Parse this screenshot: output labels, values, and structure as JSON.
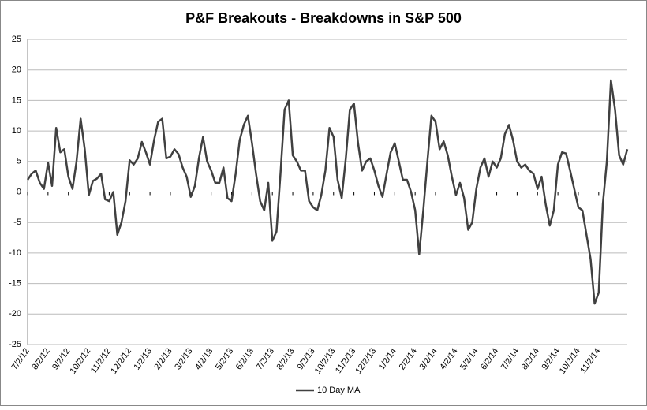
{
  "chart_data": {
    "type": "line",
    "title": "P&F Breakouts - Breakdowns in S&P 500",
    "categories": [
      "7/2/12",
      null,
      null,
      null,
      null,
      "8/2/12",
      null,
      null,
      null,
      null,
      "9/2/12",
      null,
      null,
      null,
      null,
      "10/2/12",
      null,
      null,
      null,
      null,
      "11/2/12",
      null,
      null,
      null,
      null,
      "12/2/12",
      null,
      null,
      null,
      null,
      "1/2/13",
      null,
      null,
      null,
      null,
      "2/2/13",
      null,
      null,
      null,
      null,
      "3/2/13",
      null,
      null,
      null,
      null,
      "4/2/13",
      null,
      null,
      null,
      null,
      "5/2/13",
      null,
      null,
      null,
      null,
      "6/2/13",
      null,
      null,
      null,
      null,
      "7/2/13",
      null,
      null,
      null,
      null,
      "8/2/13",
      null,
      null,
      null,
      null,
      "9/2/13",
      null,
      null,
      null,
      null,
      "10/2/13",
      null,
      null,
      null,
      null,
      "11/2/13",
      null,
      null,
      null,
      null,
      "12/2/13",
      null,
      null,
      null,
      null,
      "1/2/14",
      null,
      null,
      null,
      null,
      "2/2/14",
      null,
      null,
      null,
      null,
      "3/2/14",
      null,
      null,
      null,
      null,
      "4/2/14",
      null,
      null,
      null,
      null,
      "5/2/14",
      null,
      null,
      null,
      null,
      "6/2/14",
      null,
      null,
      null,
      null,
      "7/2/14",
      null,
      null,
      null,
      null,
      "8/2/14",
      null,
      null,
      null,
      null,
      "9/2/14",
      null,
      null,
      null,
      null,
      "10/2/14",
      null,
      null,
      null,
      null,
      "11/2/14",
      null,
      null,
      null,
      null,
      null,
      null,
      null
    ],
    "series": [
      {
        "name": "10 Day MA",
        "color": "#404040",
        "values": [
          2,
          3,
          3.5,
          1.5,
          0.5,
          4.8,
          1,
          10.5,
          6.5,
          7,
          2.5,
          0.5,
          5,
          12,
          7,
          -0.5,
          1.8,
          2.2,
          3,
          -1.2,
          -1.5,
          0,
          -7,
          -5,
          -1.5,
          5.2,
          4.5,
          5.5,
          8.2,
          6.5,
          4.5,
          8.5,
          11.5,
          12,
          5.5,
          5.8,
          7,
          6.2,
          4,
          2.5,
          -0.8,
          1,
          5.5,
          9,
          5,
          3.5,
          1.5,
          1.5,
          4,
          -1,
          -1.5,
          3,
          8.5,
          11,
          12.5,
          8,
          3,
          -1.5,
          -3,
          1.5,
          -8,
          -6.5,
          3,
          13.5,
          15,
          6,
          5,
          3.5,
          3.5,
          -1.5,
          -2.5,
          -3,
          -0.5,
          3.5,
          10.5,
          9,
          2,
          -1,
          5.5,
          13.5,
          14.5,
          8,
          3.5,
          5,
          5.5,
          3.5,
          1,
          -0.8,
          3,
          6.5,
          8,
          5,
          2,
          2,
          0,
          -3,
          -10.2,
          -3,
          5,
          12.5,
          11.5,
          7,
          8.3,
          6,
          2.5,
          -0.5,
          1.5,
          -1,
          -6.2,
          -5,
          0.5,
          4,
          5.5,
          2.5,
          5,
          4,
          5.5,
          9.5,
          11,
          8.5,
          5,
          4,
          4.5,
          3.5,
          3,
          0.5,
          2.5,
          -2,
          -5.5,
          -3,
          4.5,
          6.5,
          6.3,
          3.5,
          0.5,
          -2.5,
          -3,
          -7,
          -11,
          -18.3,
          -16.5,
          -2,
          5,
          18.3,
          13.5,
          6,
          4.5,
          7
        ]
      }
    ],
    "ylim": [
      -25,
      25
    ],
    "yticks": [
      -25,
      -20,
      -15,
      -10,
      -5,
      0,
      5,
      10,
      15,
      20,
      25
    ],
    "grid": true,
    "legend": "bottom"
  }
}
